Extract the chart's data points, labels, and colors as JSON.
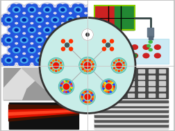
{
  "fig_w": 2.52,
  "fig_h": 1.89,
  "dpi": 100,
  "bg": "#ffffff",
  "tl_bg": "#e8eef5",
  "tr_bg": "#eef5ee",
  "bl_bg": "#ffffff",
  "br_bg": "#ffffff",
  "circle_bg": "#c8ede8",
  "circle_border": "#333333",
  "nc_shell": "#7dd8cc",
  "nc_core": "#ee1100",
  "nc_dot_red": "#ff3300",
  "nc_dot_orange": "#ff8800",
  "nc_dot_blue": "#2244ff",
  "nc_dot_yellow": "#ffdd00",
  "nc_dot_green": "#44cc44",
  "nc_dot_purple": "#aa44cc",
  "line_color": "#aaaaaa",
  "cross_color": "#cccccc",
  "border_color": "#bbbbbb"
}
